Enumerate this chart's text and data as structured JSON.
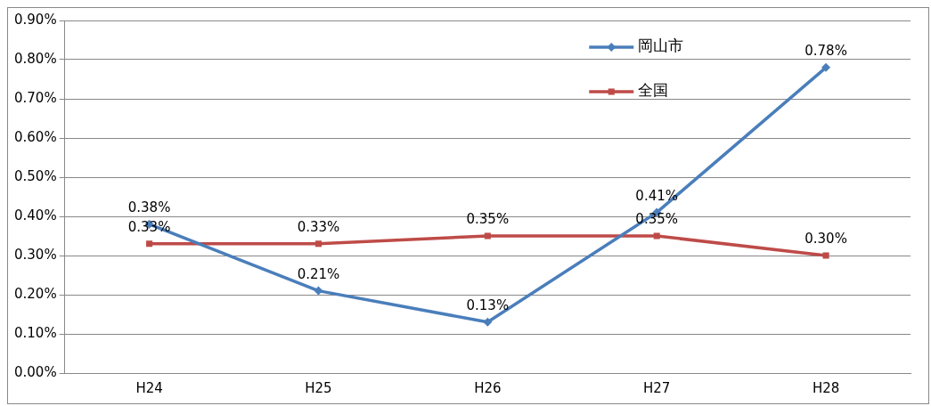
{
  "chart_data": {
    "type": "line",
    "categories": [
      "H24",
      "H25",
      "H26",
      "H27",
      "H28"
    ],
    "series": [
      {
        "name": "岡山市",
        "color": "#4a7ebb",
        "marker": "diamond",
        "values": [
          0.38,
          0.21,
          0.13,
          0.41,
          0.78
        ],
        "value_labels": [
          "0.38%",
          "0.21%",
          "0.13%",
          "0.41%",
          "0.78%"
        ]
      },
      {
        "name": "全国",
        "color": "#be4b48",
        "marker": "square",
        "values": [
          0.33,
          0.33,
          0.35,
          0.35,
          0.3
        ],
        "value_labels": [
          "0.33%",
          "0.33%",
          "0.35%",
          "0.35%",
          "0.30%"
        ]
      }
    ],
    "ylim": [
      0,
      0.9
    ],
    "yticks": [
      {
        "value": 0,
        "label": "0.00%"
      },
      {
        "value": 0.1,
        "label": "0.10%"
      },
      {
        "value": 0.2,
        "label": "0.20%"
      },
      {
        "value": 0.3,
        "label": "0.30%"
      },
      {
        "value": 0.4,
        "label": "0.40%"
      },
      {
        "value": 0.5,
        "label": "0.50%"
      },
      {
        "value": 0.6,
        "label": "0.60%"
      },
      {
        "value": 0.7,
        "label": "0.70%"
      },
      {
        "value": 0.8,
        "label": "0.80%"
      },
      {
        "value": 0.9,
        "label": "0.90%"
      }
    ],
    "grid": "y",
    "legend": "top right",
    "line_style": "solid"
  }
}
